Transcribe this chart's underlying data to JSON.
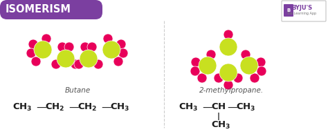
{
  "title": "ISOMERISM",
  "title_bg": "#7b3fa0",
  "title_color": "#ffffff",
  "bg_color": "#ffffff",
  "left_label": "Butane",
  "right_label": "2-methylpropane.",
  "carbon_color": "#c8e020",
  "hydrogen_color": "#e8005a",
  "formula_color": "#1a1a1a",
  "label_color": "#555555",
  "byju_box_color": "#7b3fa0",
  "byju_text": "BYJU'S",
  "byju_sub": "The Learning App",
  "divider_color": "#cccccc"
}
